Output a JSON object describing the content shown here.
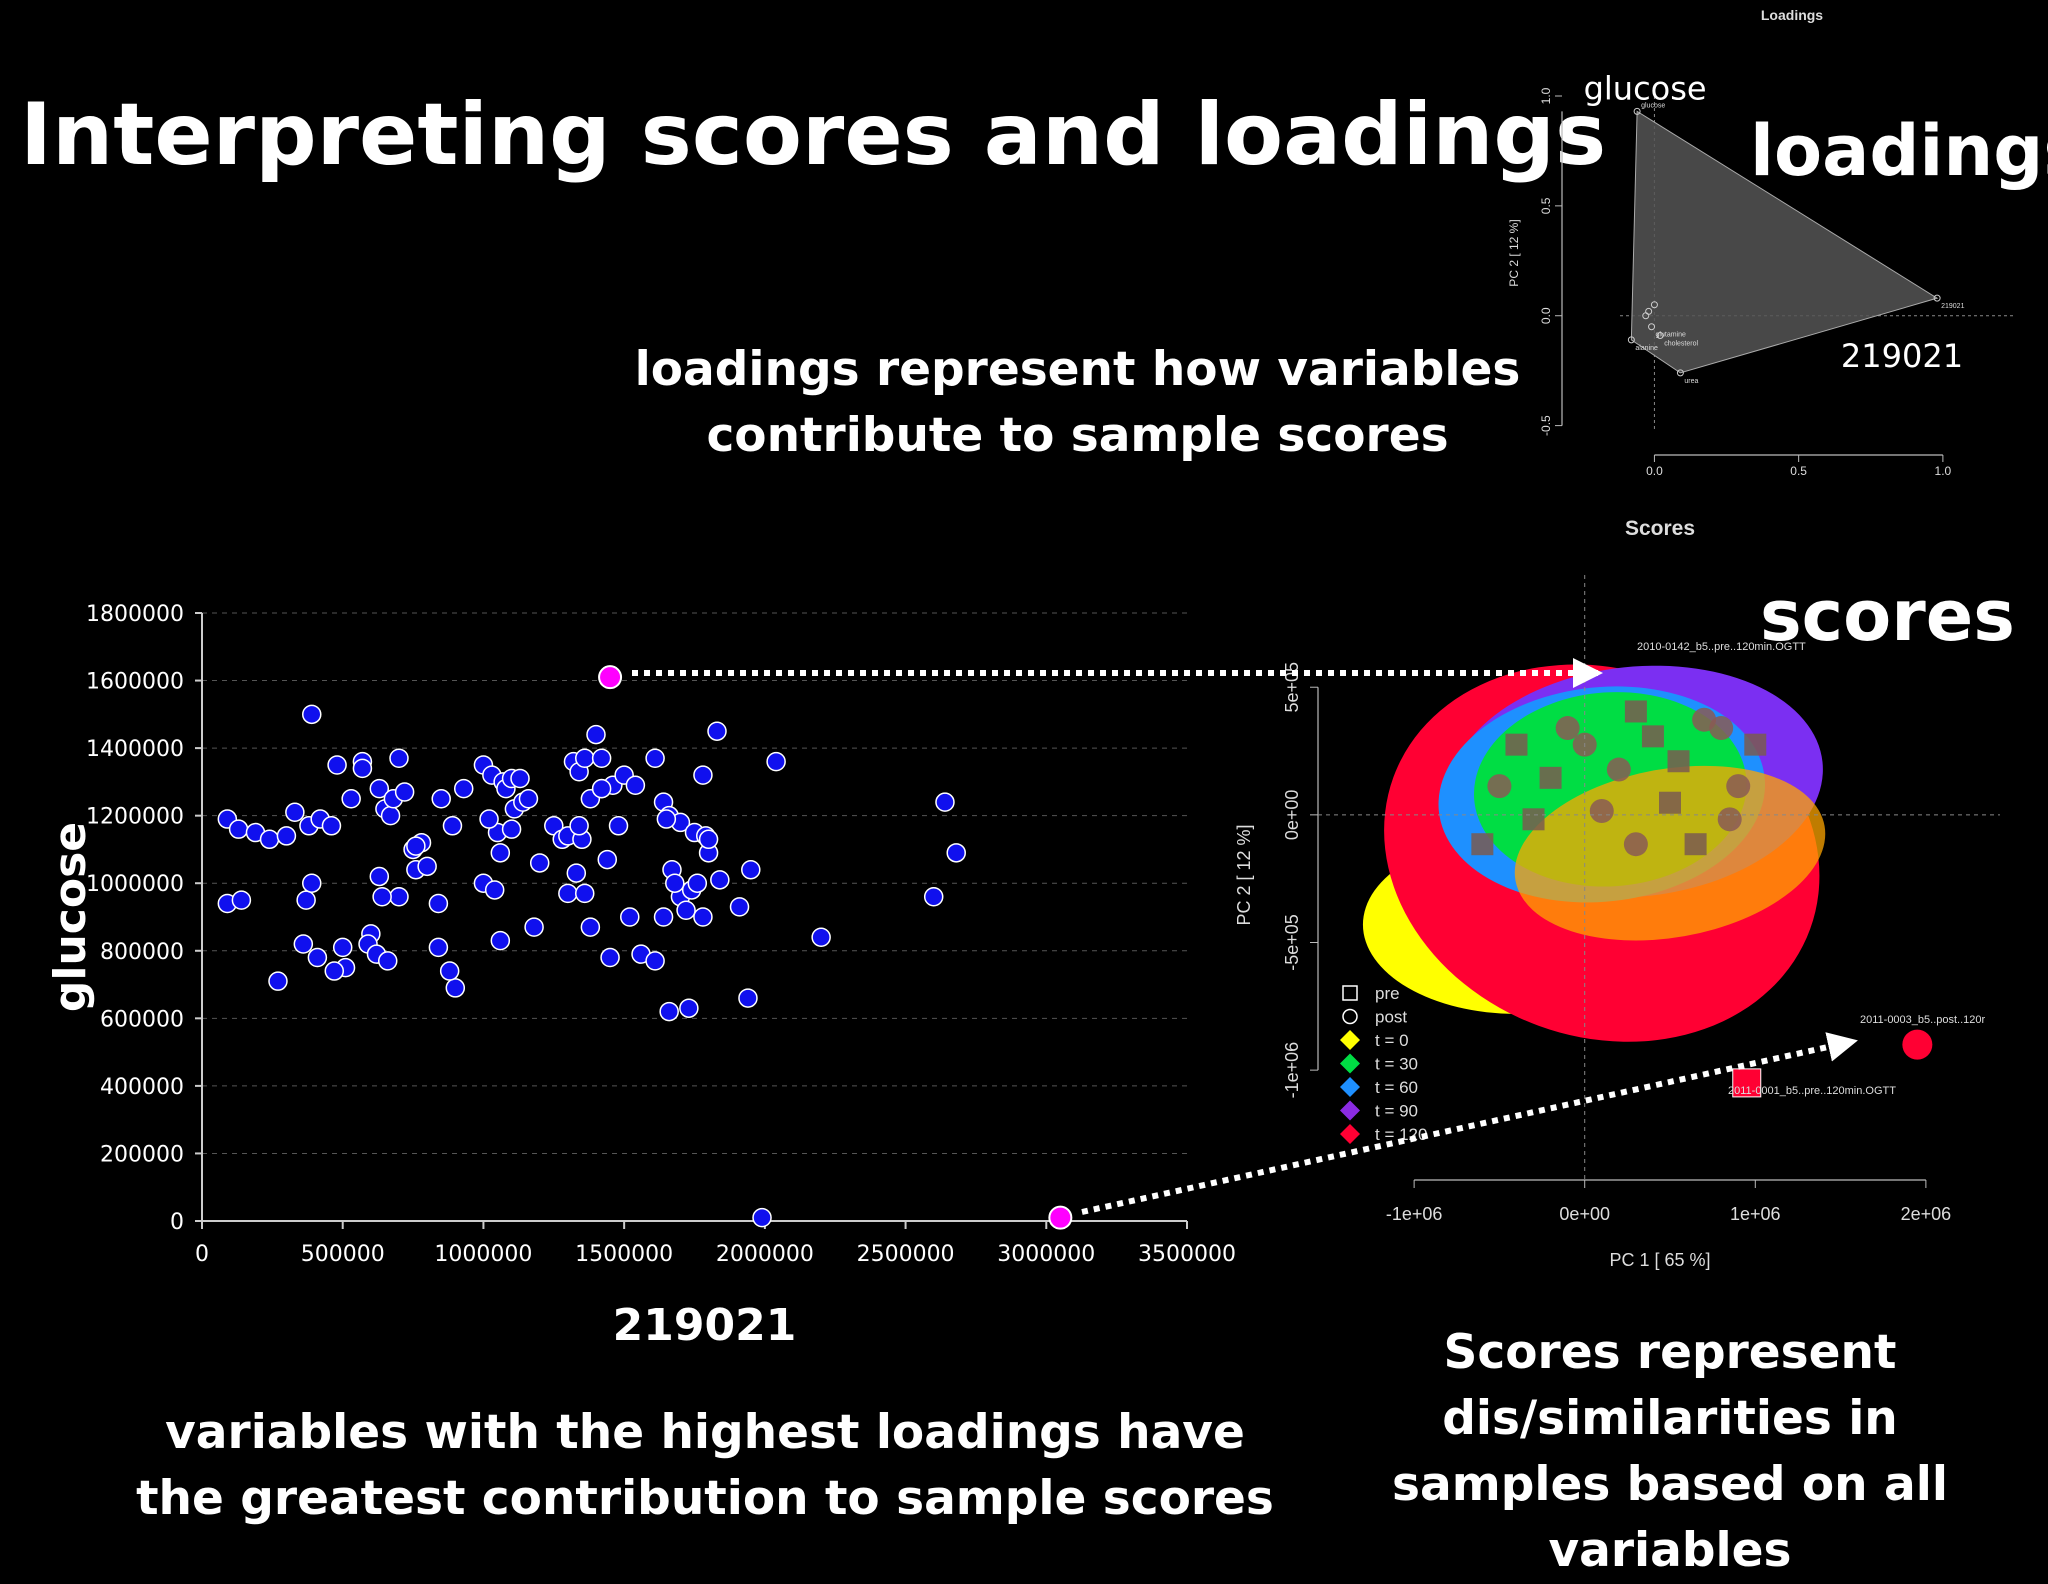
{
  "slide": {
    "title": "Interpreting scores and loadings",
    "caption_loadings": "loadings represent how variables contribute to sample scores",
    "caption_variables": "variables with the highest loadings have the greatest contribution to sample scores",
    "caption_scores": "Scores represent dis/similarities in samples based on all variables",
    "word_loadings": "loadings",
    "word_scores": "scores"
  },
  "colors": {
    "point": "#1010ee",
    "highlight": "#ff00ff",
    "grid": "#555555"
  },
  "chart_data": [
    {
      "id": "raw-scatter",
      "type": "scatter",
      "xlabel": "219021",
      "ylabel": "glucose",
      "xlim": [
        0,
        3500000
      ],
      "ylim": [
        0,
        1800000
      ],
      "x_ticks": [
        "0",
        "500000",
        "1000000",
        "1500000",
        "2000000",
        "2500000",
        "3000000",
        "3500000"
      ],
      "y_ticks": [
        "0",
        "200000",
        "400000",
        "600000",
        "800000",
        "1000000",
        "1200000",
        "1400000",
        "1600000",
        "1800000"
      ],
      "grid": "horizontal-dashed",
      "points": [
        [
          90000,
          1190000
        ],
        [
          130000,
          1160000
        ],
        [
          190000,
          1150000
        ],
        [
          240000,
          1130000
        ],
        [
          300000,
          1140000
        ],
        [
          330000,
          1210000
        ],
        [
          380000,
          1170000
        ],
        [
          420000,
          1190000
        ],
        [
          460000,
          1170000
        ],
        [
          480000,
          1350000
        ],
        [
          390000,
          1500000
        ],
        [
          530000,
          1250000
        ],
        [
          570000,
          1360000
        ],
        [
          570000,
          1340000
        ],
        [
          630000,
          1280000
        ],
        [
          650000,
          1220000
        ],
        [
          670000,
          1200000
        ],
        [
          680000,
          1250000
        ],
        [
          700000,
          1370000
        ],
        [
          720000,
          1270000
        ],
        [
          750000,
          1100000
        ],
        [
          780000,
          1120000
        ],
        [
          760000,
          1040000
        ],
        [
          800000,
          1050000
        ],
        [
          850000,
          1250000
        ],
        [
          890000,
          1170000
        ],
        [
          930000,
          1280000
        ],
        [
          1000000,
          1350000
        ],
        [
          1030000,
          1320000
        ],
        [
          1070000,
          1300000
        ],
        [
          1080000,
          1280000
        ],
        [
          1100000,
          1310000
        ],
        [
          1110000,
          1220000
        ],
        [
          1130000,
          1310000
        ],
        [
          1140000,
          1240000
        ],
        [
          1160000,
          1250000
        ],
        [
          1050000,
          1150000
        ],
        [
          1100000,
          1160000
        ],
        [
          1020000,
          1190000
        ],
        [
          1060000,
          1090000
        ],
        [
          1250000,
          1170000
        ],
        [
          1280000,
          1130000
        ],
        [
          1300000,
          1140000
        ],
        [
          1320000,
          1360000
        ],
        [
          1340000,
          1330000
        ],
        [
          1360000,
          1370000
        ],
        [
          1400000,
          1440000
        ],
        [
          1420000,
          1370000
        ],
        [
          1380000,
          1250000
        ],
        [
          1420000,
          1280000
        ],
        [
          1460000,
          1290000
        ],
        [
          1500000,
          1320000
        ],
        [
          1540000,
          1290000
        ],
        [
          1610000,
          1370000
        ],
        [
          1640000,
          1240000
        ],
        [
          1660000,
          1200000
        ],
        [
          1700000,
          1180000
        ],
        [
          1750000,
          1150000
        ],
        [
          1790000,
          1140000
        ],
        [
          1830000,
          1450000
        ],
        [
          1780000,
          1320000
        ],
        [
          1350000,
          1130000
        ],
        [
          1340000,
          1170000
        ],
        [
          1330000,
          1030000
        ],
        [
          1300000,
          970000
        ],
        [
          1360000,
          970000
        ],
        [
          1440000,
          1070000
        ],
        [
          1480000,
          1170000
        ],
        [
          1520000,
          900000
        ],
        [
          1560000,
          790000
        ],
        [
          1610000,
          770000
        ],
        [
          1700000,
          960000
        ],
        [
          1720000,
          920000
        ],
        [
          1740000,
          980000
        ],
        [
          1760000,
          1000000
        ],
        [
          1780000,
          900000
        ],
        [
          1800000,
          1090000
        ],
        [
          1840000,
          1010000
        ],
        [
          1910000,
          930000
        ],
        [
          1950000,
          1040000
        ],
        [
          1650000,
          1190000
        ],
        [
          1670000,
          1040000
        ],
        [
          1800000,
          1130000
        ],
        [
          1640000,
          900000
        ],
        [
          1660000,
          620000
        ],
        [
          1730000,
          630000
        ],
        [
          1940000,
          660000
        ],
        [
          2040000,
          1360000
        ],
        [
          2200000,
          840000
        ],
        [
          2600000,
          960000
        ],
        [
          2640000,
          1240000
        ],
        [
          2680000,
          1090000
        ],
        [
          1990000,
          10000
        ],
        [
          1680000,
          1000000
        ],
        [
          1450000,
          780000
        ],
        [
          1380000,
          870000
        ],
        [
          1200000,
          1060000
        ],
        [
          1180000,
          870000
        ],
        [
          1060000,
          830000
        ],
        [
          1000000,
          1000000
        ],
        [
          1040000,
          980000
        ],
        [
          900000,
          690000
        ],
        [
          880000,
          740000
        ],
        [
          840000,
          810000
        ],
        [
          840000,
          940000
        ],
        [
          760000,
          1110000
        ],
        [
          700000,
          960000
        ],
        [
          630000,
          1020000
        ],
        [
          640000,
          960000
        ],
        [
          600000,
          850000
        ],
        [
          590000,
          820000
        ],
        [
          620000,
          790000
        ],
        [
          660000,
          770000
        ],
        [
          500000,
          810000
        ],
        [
          510000,
          750000
        ],
        [
          470000,
          740000
        ],
        [
          410000,
          780000
        ],
        [
          360000,
          820000
        ],
        [
          370000,
          950000
        ],
        [
          390000,
          1000000
        ],
        [
          270000,
          710000
        ],
        [
          90000,
          940000
        ],
        [
          140000,
          950000
        ],
        [
          1420000,
          1280000
        ]
      ],
      "highlight_points": [
        [
          1450000,
          1610000
        ],
        [
          3050000,
          10000
        ]
      ]
    },
    {
      "id": "loadings-plot",
      "type": "scatter",
      "title": "Loadings",
      "ylabel": "PC 2 [ 12 %]",
      "x_ticks": [
        "0.0",
        "0.5",
        "1.0"
      ],
      "y_ticks": [
        "-0.5",
        "0.0",
        "0.5",
        "1.0"
      ],
      "xlim": [
        -0.05,
        1.25
      ],
      "ylim": [
        -0.52,
        1.0
      ],
      "points": [
        {
          "label": "glucose",
          "x": -0.06,
          "y": 0.93
        },
        {
          "label": "219021",
          "x": 0.98,
          "y": 0.08
        },
        {
          "label": "urea",
          "x": 0.09,
          "y": -0.26
        },
        {
          "label": "alanine",
          "x": -0.08,
          "y": -0.11
        },
        {
          "label": "cholesterol",
          "x": 0.02,
          "y": -0.09
        },
        {
          "label": "glutamine",
          "x": -0.01,
          "y": -0.05
        },
        {
          "label": "",
          "x": -0.03,
          "y": 0.0
        },
        {
          "label": "",
          "x": 0.0,
          "y": 0.05
        },
        {
          "label": "",
          "x": -0.02,
          "y": 0.02
        }
      ],
      "annotations": [
        "glucose",
        "219021"
      ]
    },
    {
      "id": "scores-plot",
      "type": "scatter",
      "title": "Scores",
      "xlabel": "PC 1 [ 65 %]",
      "ylabel": "PC 2 [ 12 %]",
      "x_ticks": [
        "-1e+06",
        "0e+00",
        "1e+06",
        "2e+06"
      ],
      "y_ticks": [
        "5e+05",
        "0e+00",
        "-5e+05",
        "-1e+06"
      ],
      "xlim": [
        -1200000,
        2200000
      ],
      "ylim": [
        -1450000,
        920000
      ],
      "legend_placement": "bottom-left",
      "legend": [
        {
          "label": "pre",
          "shape": "open-square",
          "color": "#ffffff"
        },
        {
          "label": "post",
          "shape": "open-circle",
          "color": "#ffffff"
        },
        {
          "label": "t = 0",
          "shape": "diamond",
          "color": "#ffff00"
        },
        {
          "label": "t = 30",
          "shape": "diamond",
          "color": "#00dd44"
        },
        {
          "label": "t = 60",
          "shape": "diamond",
          "color": "#1e90ff"
        },
        {
          "label": "t = 90",
          "shape": "diamond",
          "color": "#8a2be2"
        },
        {
          "label": "t = 120",
          "shape": "diamond",
          "color": "#ff0033"
        }
      ],
      "ellipses": [
        {
          "group": "t = 0",
          "color": "#ffff00",
          "cx": -400000,
          "cy": -430000,
          "rx": 900000,
          "ry": 350000,
          "angle": 0
        },
        {
          "group": "t = 120",
          "color": "#ff0033",
          "cx": 100000,
          "cy": -150000,
          "rx": 1300000,
          "ry": 720000,
          "angle": 20
        },
        {
          "group": "t = 90",
          "color": "#7b2ff2",
          "cx": 300000,
          "cy": 130000,
          "rx": 1100000,
          "ry": 450000,
          "angle": -6
        },
        {
          "group": "t = 60",
          "color": "#1e90ff",
          "cx": 100000,
          "cy": 80000,
          "rx": 960000,
          "ry": 420000,
          "angle": -6
        },
        {
          "group": "t = 30",
          "color": "#00dd44",
          "cx": 150000,
          "cy": 100000,
          "rx": 800000,
          "ry": 380000,
          "angle": -4
        },
        {
          "group": "t = 0 overlay",
          "color": "#ffa500",
          "cx": 500000,
          "cy": -150000,
          "rx": 920000,
          "ry": 330000,
          "angle": -10
        }
      ],
      "annotations": [
        {
          "label": "2010-0142_b5..pre..120min.OGTT",
          "x": 300000,
          "y": 540000
        },
        {
          "label": "2011-0003_b5..post..120r",
          "x": 1950000,
          "y": -900000
        },
        {
          "label": "2011-0001_b5..pre..120min.OGTT",
          "x": 950000,
          "y": -1050000
        }
      ],
      "outliers": [
        {
          "shape": "square",
          "x": 950000,
          "y": -1050000,
          "color": "#ff0033"
        },
        {
          "shape": "circle",
          "x": 1950000,
          "y": -900000,
          "color": "#ff0033"
        }
      ]
    }
  ]
}
